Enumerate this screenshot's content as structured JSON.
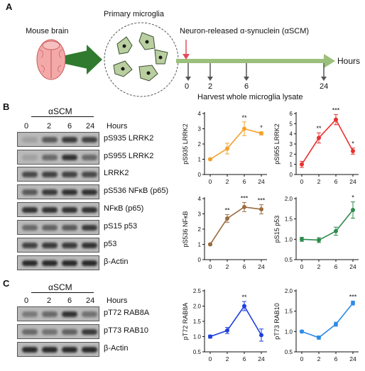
{
  "panels": {
    "a": "A",
    "b": "B",
    "c": "C"
  },
  "schematic": {
    "mouse_brain": "Mouse brain",
    "primary_microglia": "Primary microglia",
    "neuron_released": "Neuron-released α-synuclein (αSCM)",
    "hours": "Hours",
    "timepoints": [
      "0",
      "2",
      "6",
      "24"
    ],
    "harvest": "Harvest whole microglia lysate"
  },
  "blots_b": {
    "treatment": "αSCM",
    "hours_label": "Hours",
    "lanes": [
      "0",
      "2",
      "6",
      "24"
    ],
    "rows": [
      {
        "label": "pS935 LRRK2"
      },
      {
        "label": "pS955 LRRK2"
      },
      {
        "label": "LRRK2"
      },
      {
        "label": "pS536 NFκB (p65)"
      },
      {
        "label": "NFκB (p65)"
      },
      {
        "label": "pS15 p53"
      },
      {
        "label": "p53"
      },
      {
        "label": "β-Actin"
      }
    ]
  },
  "blots_c": {
    "treatment": "αSCM",
    "hours_label": "Hours",
    "lanes": [
      "0",
      "2",
      "6",
      "24"
    ],
    "rows": [
      {
        "label": "pT72 RAB8A"
      },
      {
        "label": "pT73 RAB10"
      },
      {
        "label": "β-Actin"
      }
    ]
  },
  "chart_data": [
    {
      "type": "line",
      "ylabel": "pS935 LRRK2",
      "categories": [
        "0",
        "2",
        "6",
        "24"
      ],
      "values": [
        1.0,
        1.7,
        3.0,
        2.7
      ],
      "errors": [
        0.05,
        0.35,
        0.45,
        0.1
      ],
      "sig": [
        "",
        "",
        "**",
        "*"
      ],
      "ylim": [
        0,
        4
      ],
      "yticks": [
        "0",
        "1",
        "2",
        "3",
        "4"
      ],
      "color": "#f5a12a"
    },
    {
      "type": "line",
      "ylabel": "pS955 LRRK2",
      "categories": [
        "0",
        "2",
        "6",
        "24"
      ],
      "values": [
        1.0,
        3.6,
        5.4,
        2.3
      ],
      "errors": [
        0.3,
        0.5,
        0.5,
        0.3
      ],
      "sig": [
        "",
        "**",
        "***",
        "*"
      ],
      "ylim": [
        0,
        6
      ],
      "yticks": [
        "0",
        "1",
        "2",
        "3",
        "4",
        "5",
        "6"
      ],
      "color": "#e8312f"
    },
    {
      "type": "line",
      "ylabel": "pS536 NFκB",
      "categories": [
        "0",
        "2",
        "6",
        "24"
      ],
      "values": [
        1.0,
        2.7,
        3.45,
        3.3
      ],
      "errors": [
        0.05,
        0.25,
        0.3,
        0.3
      ],
      "sig": [
        "",
        "**",
        "***",
        "***"
      ],
      "ylim": [
        0,
        4
      ],
      "yticks": [
        "0",
        "1",
        "2",
        "3",
        "4"
      ],
      "color": "#9a6b3f"
    },
    {
      "type": "line",
      "ylabel": "pS15 p53",
      "categories": [
        "0",
        "2",
        "6",
        "24"
      ],
      "values": [
        1.0,
        0.98,
        1.2,
        1.72
      ],
      "errors": [
        0.05,
        0.06,
        0.1,
        0.2
      ],
      "sig": [
        "",
        "",
        "",
        "*"
      ],
      "ylim": [
        0.5,
        2.0
      ],
      "yticks": [
        "0.5",
        "1.0",
        "1.5",
        "2.0"
      ],
      "color": "#2e8b4e"
    },
    {
      "type": "line",
      "ylabel": "pT72 RAB8A",
      "categories": [
        "0",
        "2",
        "6",
        "24"
      ],
      "values": [
        1.0,
        1.2,
        2.0,
        1.05
      ],
      "errors": [
        0.05,
        0.1,
        0.15,
        0.2
      ],
      "sig": [
        "",
        "",
        "**",
        ""
      ],
      "ylim": [
        0.5,
        2.5
      ],
      "yticks": [
        "0.5",
        "1.0",
        "1.5",
        "2.0",
        "2.5"
      ],
      "color": "#1f3ee0"
    },
    {
      "type": "line",
      "ylabel": "pT73 RAB10",
      "categories": [
        "0",
        "2",
        "6",
        "24"
      ],
      "values": [
        1.0,
        0.85,
        1.18,
        1.7
      ],
      "errors": [
        0.03,
        0.04,
        0.05,
        0.05
      ],
      "sig": [
        "",
        "",
        "",
        "***"
      ],
      "ylim": [
        0.5,
        2.0
      ],
      "yticks": [
        "0.5",
        "1.0",
        "1.5",
        "2.0"
      ],
      "color": "#2b8be8"
    }
  ]
}
